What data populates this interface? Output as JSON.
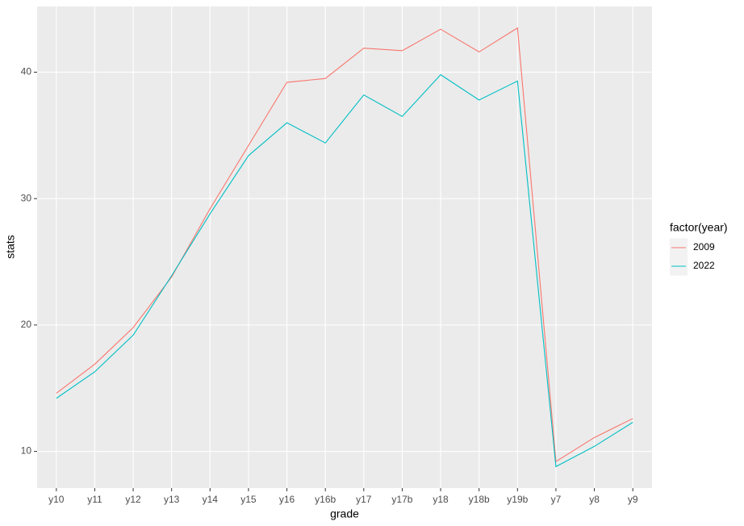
{
  "chart_data": {
    "type": "line",
    "x_label": "grade",
    "y_label": "stats",
    "legend_title": "factor(year)",
    "legend_position": "right",
    "categories": [
      "y10",
      "y11",
      "y12",
      "y13",
      "y14",
      "y15",
      "y16",
      "y16b",
      "y17",
      "y17b",
      "y18",
      "y18b",
      "y19b",
      "y7",
      "y8",
      "y9"
    ],
    "series": [
      {
        "name": "2009",
        "color": "#F8766D",
        "values": [
          14.6,
          16.9,
          19.8,
          23.8,
          29.2,
          34.2,
          39.2,
          39.5,
          41.9,
          41.7,
          43.4,
          41.6,
          43.5,
          9.2,
          11.1,
          12.6
        ]
      },
      {
        "name": "2022",
        "color": "#00BFC4",
        "values": [
          14.2,
          16.3,
          19.2,
          23.9,
          28.8,
          33.4,
          36.0,
          34.4,
          38.2,
          36.5,
          39.8,
          37.8,
          39.3,
          8.8,
          10.4,
          12.3
        ]
      }
    ],
    "ylim": [
      7.1,
      45.2
    ],
    "yticks": [
      10,
      20,
      30,
      40
    ],
    "grid": true
  }
}
